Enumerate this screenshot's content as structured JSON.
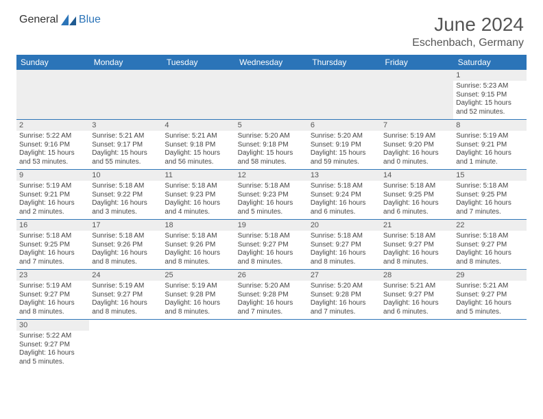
{
  "brand": {
    "part1": "General",
    "part2": "Blue"
  },
  "title": "June 2024",
  "location": "Eschenbach, Germany",
  "colors": {
    "header_bg": "#2b74b8",
    "header_text": "#ffffff",
    "daynum_bg": "#eeeeee",
    "border": "#2b74b8",
    "text": "#444444"
  },
  "weekdays": [
    "Sunday",
    "Monday",
    "Tuesday",
    "Wednesday",
    "Thursday",
    "Friday",
    "Saturday"
  ],
  "layout": {
    "columns": 7,
    "rows": 6,
    "first_day_column": 6
  },
  "days": {
    "1": {
      "sunrise": "5:23 AM",
      "sunset": "9:15 PM",
      "daylight": "15 hours and 52 minutes."
    },
    "2": {
      "sunrise": "5:22 AM",
      "sunset": "9:16 PM",
      "daylight": "15 hours and 53 minutes."
    },
    "3": {
      "sunrise": "5:21 AM",
      "sunset": "9:17 PM",
      "daylight": "15 hours and 55 minutes."
    },
    "4": {
      "sunrise": "5:21 AM",
      "sunset": "9:18 PM",
      "daylight": "15 hours and 56 minutes."
    },
    "5": {
      "sunrise": "5:20 AM",
      "sunset": "9:18 PM",
      "daylight": "15 hours and 58 minutes."
    },
    "6": {
      "sunrise": "5:20 AM",
      "sunset": "9:19 PM",
      "daylight": "15 hours and 59 minutes."
    },
    "7": {
      "sunrise": "5:19 AM",
      "sunset": "9:20 PM",
      "daylight": "16 hours and 0 minutes."
    },
    "8": {
      "sunrise": "5:19 AM",
      "sunset": "9:21 PM",
      "daylight": "16 hours and 1 minute."
    },
    "9": {
      "sunrise": "5:19 AM",
      "sunset": "9:21 PM",
      "daylight": "16 hours and 2 minutes."
    },
    "10": {
      "sunrise": "5:18 AM",
      "sunset": "9:22 PM",
      "daylight": "16 hours and 3 minutes."
    },
    "11": {
      "sunrise": "5:18 AM",
      "sunset": "9:23 PM",
      "daylight": "16 hours and 4 minutes."
    },
    "12": {
      "sunrise": "5:18 AM",
      "sunset": "9:23 PM",
      "daylight": "16 hours and 5 minutes."
    },
    "13": {
      "sunrise": "5:18 AM",
      "sunset": "9:24 PM",
      "daylight": "16 hours and 6 minutes."
    },
    "14": {
      "sunrise": "5:18 AM",
      "sunset": "9:25 PM",
      "daylight": "16 hours and 6 minutes."
    },
    "15": {
      "sunrise": "5:18 AM",
      "sunset": "9:25 PM",
      "daylight": "16 hours and 7 minutes."
    },
    "16": {
      "sunrise": "5:18 AM",
      "sunset": "9:25 PM",
      "daylight": "16 hours and 7 minutes."
    },
    "17": {
      "sunrise": "5:18 AM",
      "sunset": "9:26 PM",
      "daylight": "16 hours and 8 minutes."
    },
    "18": {
      "sunrise": "5:18 AM",
      "sunset": "9:26 PM",
      "daylight": "16 hours and 8 minutes."
    },
    "19": {
      "sunrise": "5:18 AM",
      "sunset": "9:27 PM",
      "daylight": "16 hours and 8 minutes."
    },
    "20": {
      "sunrise": "5:18 AM",
      "sunset": "9:27 PM",
      "daylight": "16 hours and 8 minutes."
    },
    "21": {
      "sunrise": "5:18 AM",
      "sunset": "9:27 PM",
      "daylight": "16 hours and 8 minutes."
    },
    "22": {
      "sunrise": "5:18 AM",
      "sunset": "9:27 PM",
      "daylight": "16 hours and 8 minutes."
    },
    "23": {
      "sunrise": "5:19 AM",
      "sunset": "9:27 PM",
      "daylight": "16 hours and 8 minutes."
    },
    "24": {
      "sunrise": "5:19 AM",
      "sunset": "9:27 PM",
      "daylight": "16 hours and 8 minutes."
    },
    "25": {
      "sunrise": "5:19 AM",
      "sunset": "9:28 PM",
      "daylight": "16 hours and 8 minutes."
    },
    "26": {
      "sunrise": "5:20 AM",
      "sunset": "9:28 PM",
      "daylight": "16 hours and 7 minutes."
    },
    "27": {
      "sunrise": "5:20 AM",
      "sunset": "9:28 PM",
      "daylight": "16 hours and 7 minutes."
    },
    "28": {
      "sunrise": "5:21 AM",
      "sunset": "9:27 PM",
      "daylight": "16 hours and 6 minutes."
    },
    "29": {
      "sunrise": "5:21 AM",
      "sunset": "9:27 PM",
      "daylight": "16 hours and 5 minutes."
    },
    "30": {
      "sunrise": "5:22 AM",
      "sunset": "9:27 PM",
      "daylight": "16 hours and 5 minutes."
    }
  },
  "labels": {
    "sunrise": "Sunrise:",
    "sunset": "Sunset:",
    "daylight": "Daylight:"
  }
}
